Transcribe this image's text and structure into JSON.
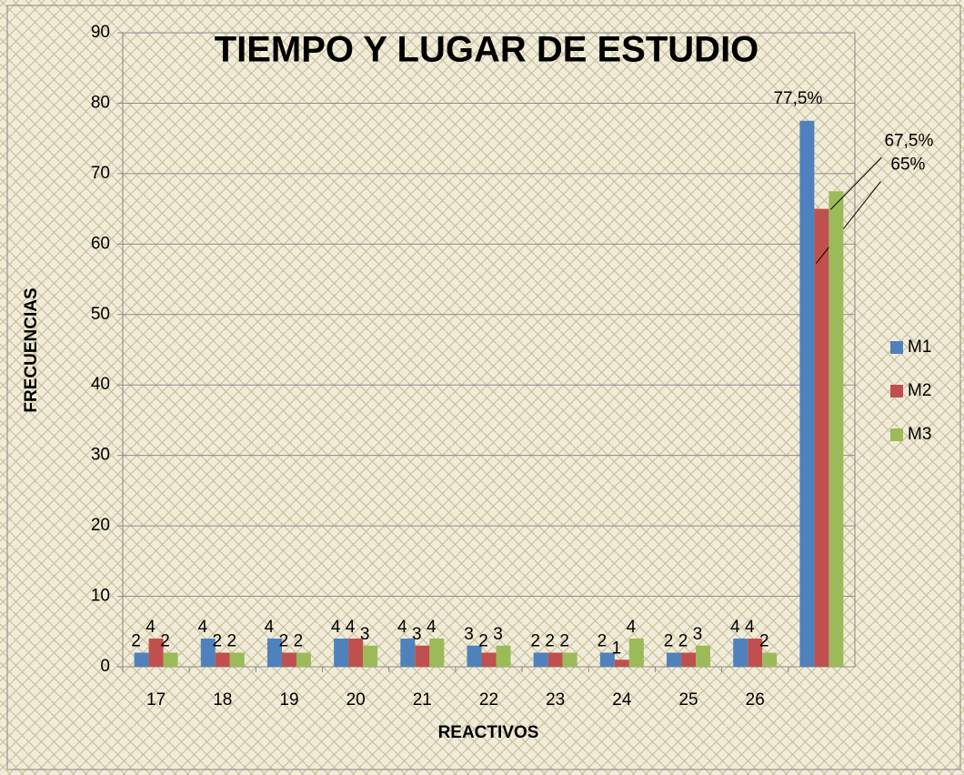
{
  "chart_data": {
    "type": "bar",
    "title": "TIEMPO Y LUGAR DE ESTUDIO",
    "x_label": "REACTIVOS",
    "y_label": "FRECUENCIAS",
    "categories": [
      "17",
      "18",
      "19",
      "20",
      "21",
      "22",
      "23",
      "24",
      "25",
      "26",
      null
    ],
    "series": [
      {
        "name": "M1",
        "color": "#4f81bd",
        "values": [
          2,
          4,
          4,
          4,
          4,
          3,
          2,
          2,
          2,
          4,
          77.5
        ],
        "value_labels": [
          "2",
          "4",
          "4",
          "4",
          "4",
          "3",
          "2",
          "2",
          "2",
          "4",
          "77,5%"
        ]
      },
      {
        "name": "M2",
        "color": "#c0504d",
        "values": [
          4,
          2,
          2,
          4,
          3,
          2,
          2,
          1,
          2,
          4,
          65
        ],
        "value_labels": [
          "4",
          "2",
          "2",
          "4",
          "3",
          "2",
          "2",
          "1",
          "2",
          "4",
          "65%"
        ]
      },
      {
        "name": "M3",
        "color": "#9bbb59",
        "values": [
          2,
          2,
          2,
          3,
          4,
          3,
          2,
          4,
          3,
          2,
          67.5
        ],
        "value_labels": [
          "2",
          "2",
          "2",
          "3",
          "4",
          "3",
          "2",
          "4",
          "3",
          "2",
          "67,5%"
        ]
      }
    ],
    "ylim": [
      0,
      90
    ],
    "yticks": [
      0,
      10,
      20,
      30,
      40,
      50,
      60,
      70,
      80,
      90
    ],
    "grid": true,
    "legend": "right"
  }
}
